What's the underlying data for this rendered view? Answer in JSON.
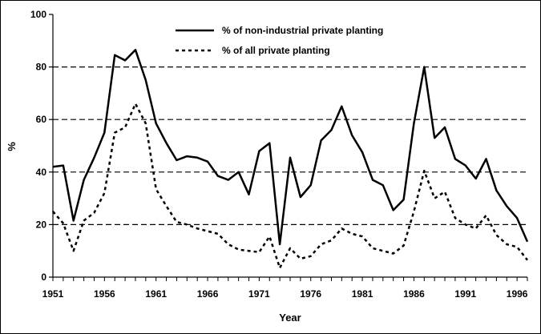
{
  "chart_data": {
    "type": "line",
    "ylabel": "%",
    "xlabel": "Year",
    "ylim": [
      0,
      100
    ],
    "xlim": [
      1951,
      1997
    ],
    "y_ticks": [
      "0",
      "20",
      "40",
      "60",
      "80",
      "100"
    ],
    "x_ticks": [
      "1951",
      "1956",
      "1961",
      "1966",
      "1971",
      "1976",
      "1981",
      "1986",
      "1991",
      "1996"
    ],
    "grid": "horizontal dashed at 20, 40, 60, 80",
    "legend": "top-center",
    "series": [
      {
        "name": "% of non-industrial private planting",
        "style": "solid",
        "color": "#000000",
        "x": [
          1951,
          1952,
          1953,
          1954,
          1955,
          1956,
          1957,
          1958,
          1959,
          1960,
          1961,
          1962,
          1963,
          1964,
          1965,
          1966,
          1967,
          1968,
          1969,
          1970,
          1971,
          1972,
          1973,
          1974,
          1975,
          1976,
          1977,
          1978,
          1979,
          1980,
          1981,
          1982,
          1983,
          1984,
          1985,
          1986,
          1987,
          1988,
          1989,
          1990,
          1991,
          1992,
          1993,
          1994,
          1995,
          1996,
          1997
        ],
        "values": [
          42,
          42.5,
          21.5,
          37,
          45.5,
          55,
          84.5,
          82.5,
          86.5,
          75,
          58.5,
          51,
          44.5,
          46,
          45.5,
          44,
          38.5,
          37,
          40,
          31.5,
          48,
          51,
          12.5,
          45.5,
          30.5,
          35,
          52,
          56,
          65,
          54,
          47.5,
          37,
          35,
          25.5,
          29.5,
          58.5,
          80,
          53,
          57,
          45,
          42.5,
          37.5,
          45,
          33,
          27,
          22.5,
          13.5
        ]
      },
      {
        "name": "% of all private planting",
        "style": "dashed",
        "color": "#000000",
        "x": [
          1951,
          1952,
          1953,
          1954,
          1955,
          1956,
          1957,
          1958,
          1959,
          1960,
          1961,
          1962,
          1963,
          1964,
          1965,
          1966,
          1967,
          1968,
          1969,
          1970,
          1971,
          1972,
          1973,
          1974,
          1975,
          1976,
          1977,
          1978,
          1979,
          1980,
          1981,
          1982,
          1983,
          1984,
          1985,
          1986,
          1987,
          1988,
          1989,
          1990,
          1991,
          1992,
          1993,
          1994,
          1995,
          1996,
          1997
        ],
        "values": [
          25,
          20.5,
          10,
          21.5,
          24.5,
          32,
          55,
          57,
          66,
          58.5,
          33.5,
          27,
          21,
          20,
          18.5,
          17.5,
          16.5,
          12.5,
          10.5,
          10,
          9.5,
          15.5,
          3.5,
          11,
          7,
          8,
          12.5,
          14,
          18.5,
          16.5,
          15.5,
          11,
          10,
          9,
          12,
          25,
          40.5,
          30,
          32.5,
          22.5,
          20,
          18.5,
          23.5,
          16,
          12.5,
          11.5,
          6.5
        ]
      }
    ]
  }
}
